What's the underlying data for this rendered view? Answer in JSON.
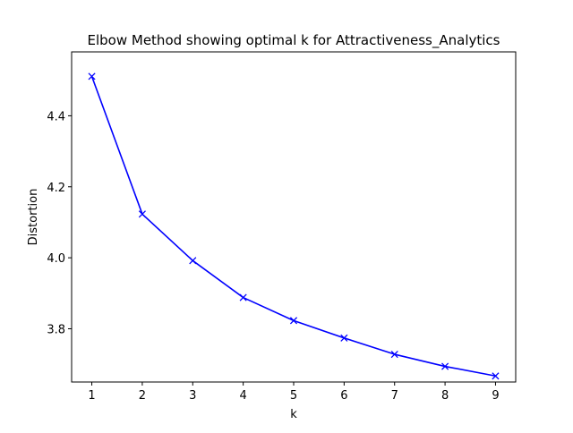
{
  "chart_data": {
    "type": "line",
    "title": "Elbow Method showing optimal k for Attractiveness_Analytics",
    "xlabel": "k",
    "ylabel": "Distortion",
    "xlim": [
      0.6,
      9.4
    ],
    "ylim": [
      3.65,
      4.58
    ],
    "x_ticks": [
      1,
      2,
      3,
      4,
      5,
      6,
      7,
      8,
      9
    ],
    "y_ticks": [
      3.8,
      4.0,
      4.2,
      4.4
    ],
    "grid": false,
    "series": [
      {
        "x": [
          1,
          2,
          3,
          4,
          5,
          6,
          7,
          8,
          9
        ],
        "y": [
          4.511,
          4.123,
          3.992,
          3.888,
          3.823,
          3.774,
          3.728,
          3.694,
          3.667
        ],
        "color": "#0000ff",
        "marker": "x"
      }
    ]
  }
}
